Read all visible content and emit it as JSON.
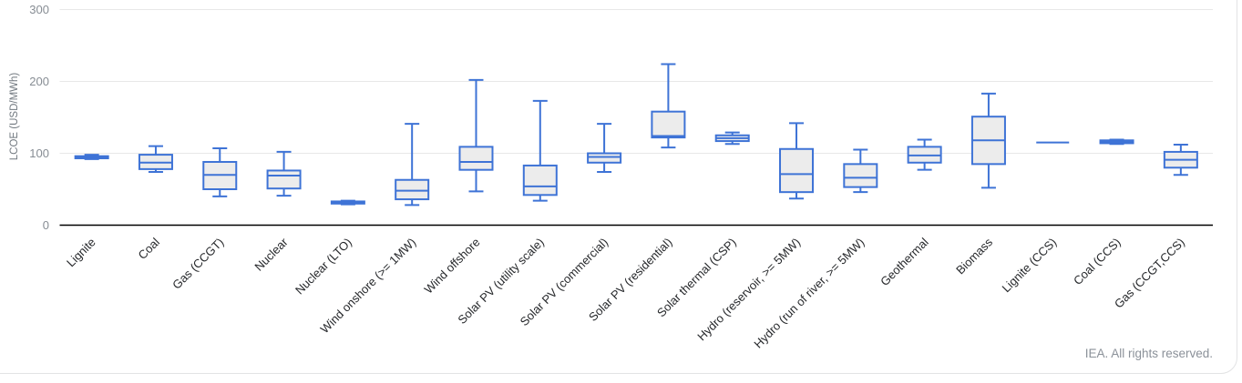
{
  "chart_data": {
    "type": "boxplot",
    "title": "",
    "xlabel": "",
    "ylabel": "LCOE (USD/MWh)",
    "ylim": [
      0,
      300
    ],
    "yticks": [
      0,
      100,
      200,
      300
    ],
    "grid": true,
    "legend": "none",
    "categories": [
      "Lignite",
      "Coal",
      "Gas (CCGT)",
      "Nuclear",
      "Nuclear (LTO)",
      "Wind onshore (>= 1MW)",
      "Wind offshore",
      "Solar PV (utility scale)",
      "Solar PV (commercial)",
      "Solar PV (residential)",
      "Solar thermal (CSP)",
      "Hydro (reservoir, >= 5MW)",
      "Hydro (run of river, >= 5MW)",
      "Geothermal",
      "Biomass",
      "Lignite (CCS)",
      "Coal (CCS)",
      "Gas (CCGT,CCS)"
    ],
    "series": [
      {
        "name": "LCOE",
        "stats": [
          {
            "min": 92,
            "q1": 93,
            "median": 94.5,
            "q3": 96,
            "max": 98
          },
          {
            "min": 74,
            "q1": 78,
            "median": 87,
            "q3": 98,
            "max": 110
          },
          {
            "min": 40,
            "q1": 50,
            "median": 70,
            "q3": 88,
            "max": 107
          },
          {
            "min": 41,
            "q1": 51,
            "median": 69,
            "q3": 76,
            "max": 102
          },
          {
            "min": 29,
            "q1": 30,
            "median": 31.5,
            "q3": 33,
            "max": 34
          },
          {
            "min": 28,
            "q1": 36,
            "median": 48,
            "q3": 63,
            "max": 141
          },
          {
            "min": 47,
            "q1": 77,
            "median": 88,
            "q3": 109,
            "max": 202
          },
          {
            "min": 34,
            "q1": 42,
            "median": 54,
            "q3": 83,
            "max": 173
          },
          {
            "min": 74,
            "q1": 87,
            "median": 95,
            "q3": 100,
            "max": 141
          },
          {
            "min": 108,
            "q1": 122,
            "median": 124,
            "q3": 158,
            "max": 224
          },
          {
            "min": 113,
            "q1": 117,
            "median": 121,
            "q3": 125,
            "max": 129
          },
          {
            "min": 37,
            "q1": 46,
            "median": 71,
            "q3": 106,
            "max": 142
          },
          {
            "min": 46,
            "q1": 53,
            "median": 66,
            "q3": 85,
            "max": 105
          },
          {
            "min": 77,
            "q1": 87,
            "median": 97,
            "q3": 109,
            "max": 119
          },
          {
            "min": 52,
            "q1": 85,
            "median": 118,
            "q3": 151,
            "max": 183
          },
          {
            "min": 115,
            "q1": 115,
            "median": 115,
            "q3": 115,
            "max": 115
          },
          {
            "min": 113,
            "q1": 114,
            "median": 116,
            "q3": 118,
            "max": 119
          },
          {
            "min": 70,
            "q1": 80,
            "median": 91,
            "q3": 102,
            "max": 112
          }
        ]
      }
    ]
  },
  "colors": {
    "box_stroke": "#3e73d6",
    "box_fill": "#ececec",
    "grid": "#e8e8e8",
    "axis": "#000000",
    "tick_label": "#878d94",
    "axis_title": "#71787f",
    "category_label": "#26282b",
    "credit_text": "#8b9199"
  },
  "footer": {
    "credit": "IEA. All rights reserved."
  }
}
